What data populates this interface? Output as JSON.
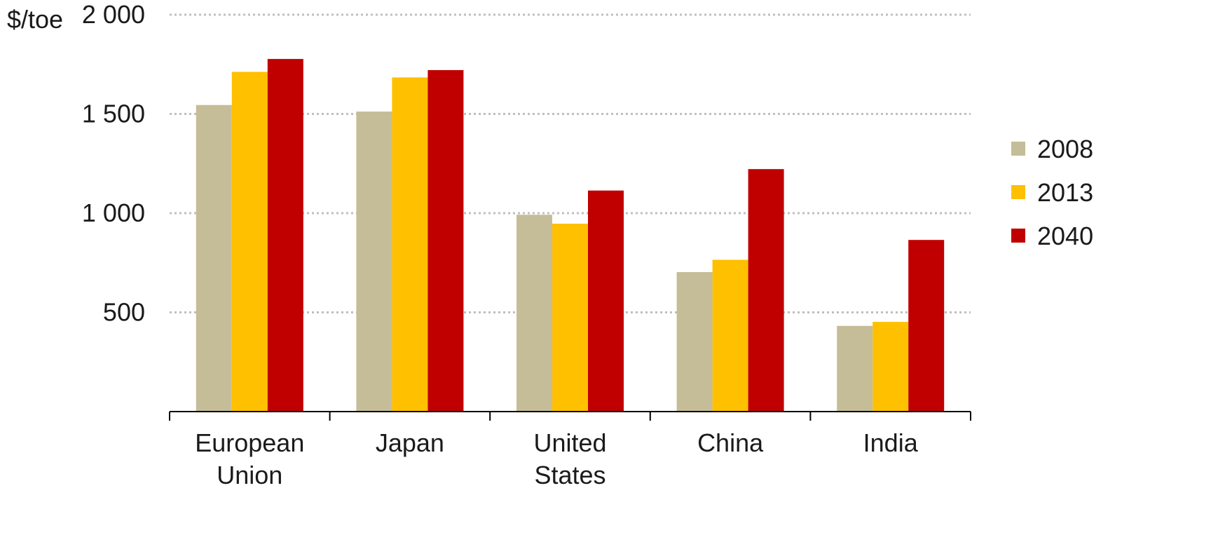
{
  "chart_data": {
    "type": "bar",
    "ylabel": "$/toe",
    "ylim": [
      0,
      2000
    ],
    "yticks": [
      500,
      1000,
      1500,
      2000
    ],
    "ytick_labels": [
      "500",
      "1 000",
      "1 500",
      "2 000"
    ],
    "grid": true,
    "legend_position": "right",
    "categories": [
      [
        "European",
        "Union"
      ],
      [
        "Japan"
      ],
      [
        "United",
        "States"
      ],
      [
        "China"
      ],
      [
        "India"
      ]
    ],
    "series": [
      {
        "name": "2008",
        "color": "#C4BD97",
        "values": [
          1545,
          1512,
          992,
          703,
          432
        ]
      },
      {
        "name": "2013",
        "color": "#FFC000",
        "values": [
          1712,
          1684,
          947,
          765,
          452
        ]
      },
      {
        "name": "2040",
        "color": "#C00000",
        "values": [
          1777,
          1721,
          1114,
          1222,
          865
        ]
      }
    ]
  }
}
